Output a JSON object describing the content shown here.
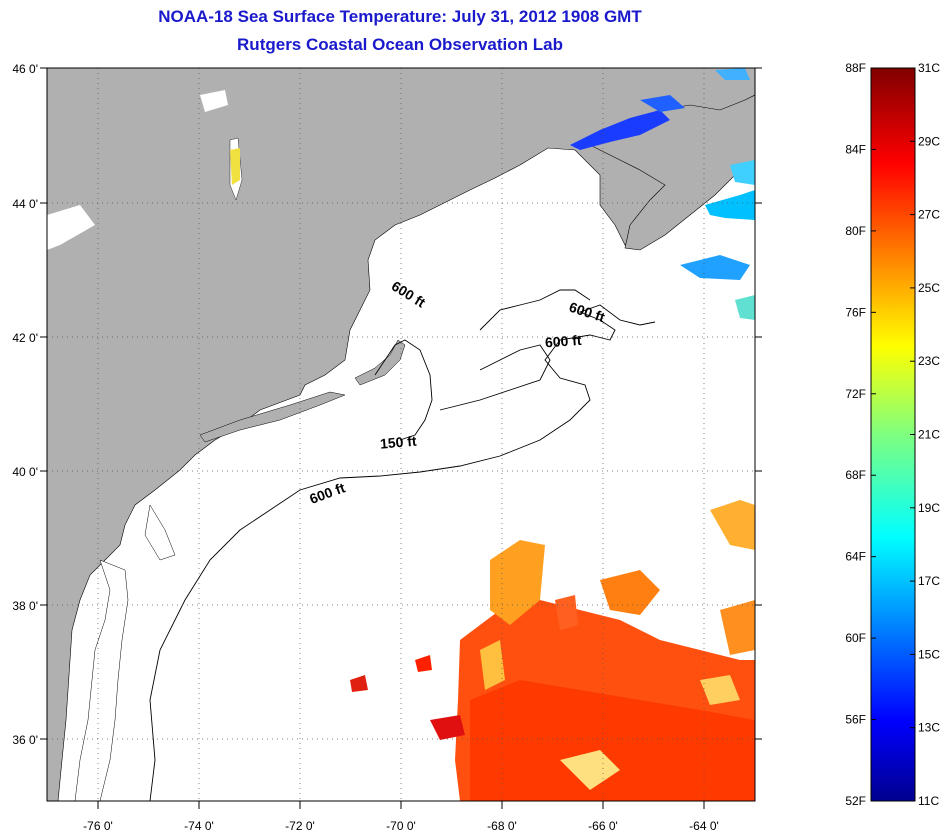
{
  "title": "NOAA-18 Sea Surface Temperature:  July 31, 2012 1908 GMT",
  "subtitle": "Rutgers Coastal Ocean Observation Lab",
  "map": {
    "lon_range": [
      -77,
      -63
    ],
    "lat_range": [
      35,
      46
    ],
    "lon_ticks": [
      "-76 0'",
      "-74 0'",
      "-72 0'",
      "-70 0'",
      "-68 0'",
      "-66 0'",
      "-64 0'"
    ],
    "lat_ticks": [
      "46 0'",
      "44 0'",
      "42 0'",
      "40 0'",
      "38 0'",
      "36 0'"
    ],
    "land_color": "#b0b0b0",
    "grid": "dotted",
    "contour_labels": [
      "600 ft",
      "600 ft",
      "600 ft",
      "150 ft",
      "600 ft"
    ]
  },
  "colorbar": {
    "f_labels": [
      "88F",
      "84F",
      "80F",
      "76F",
      "72F",
      "68F",
      "64F",
      "60F",
      "56F",
      "52F"
    ],
    "c_labels": [
      "31C",
      "29C",
      "27C",
      "25C",
      "23C",
      "21C",
      "19C",
      "17C",
      "15C",
      "13C",
      "11C"
    ],
    "colormap": "jet"
  }
}
